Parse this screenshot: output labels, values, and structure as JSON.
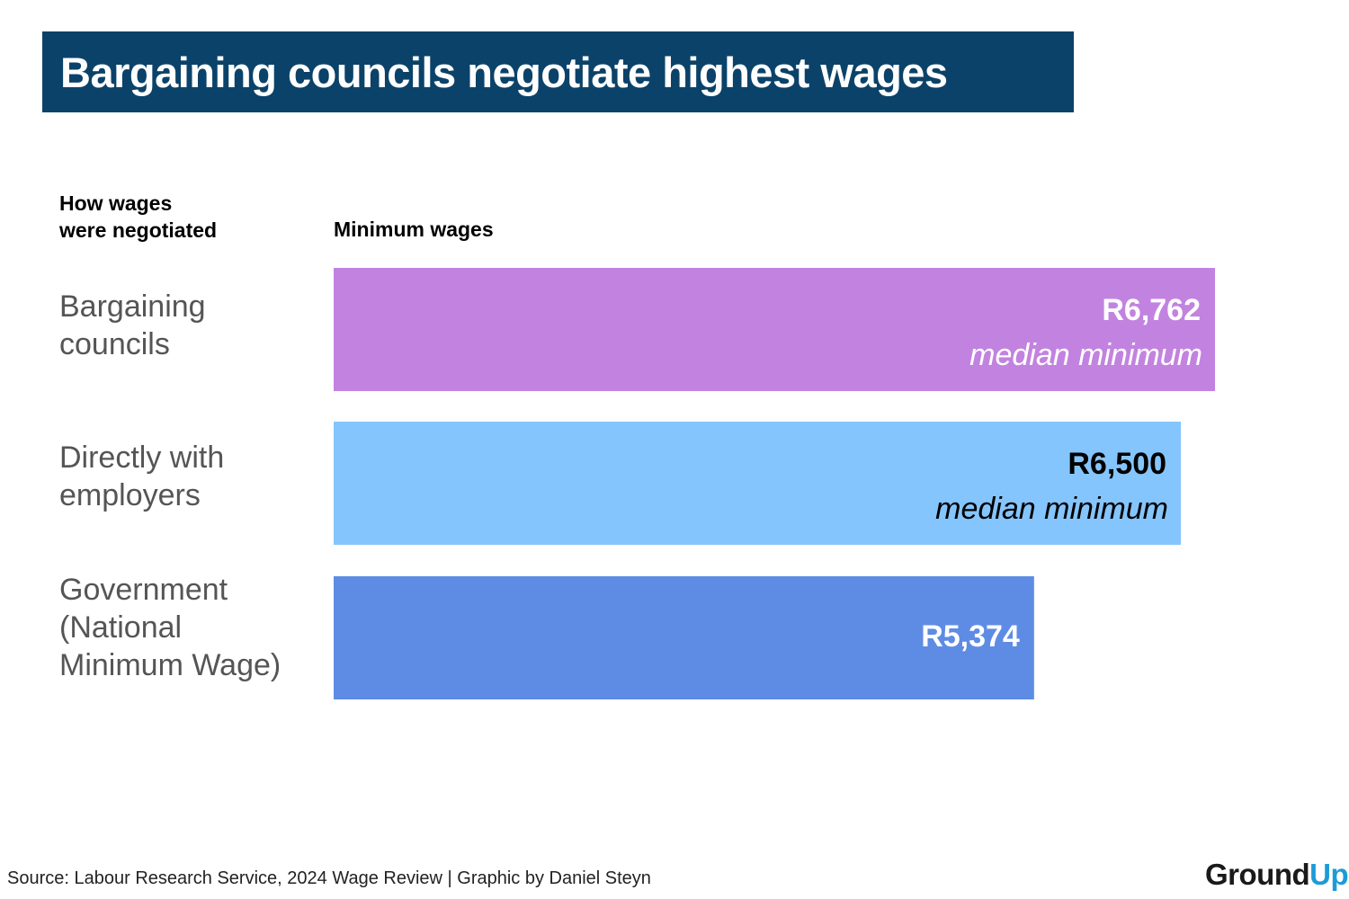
{
  "chart_data": {
    "type": "bar",
    "orientation": "horizontal",
    "title": "Bargaining councils negotiate highest wages",
    "category_header": "How wages\nwere negotiated",
    "value_header": "Minimum wages",
    "categories": [
      "Bargaining\ncouncils",
      "Directly with\nemployers",
      "Government\n(National\nMinimum Wage)"
    ],
    "values": [
      6762,
      6500,
      5374
    ],
    "value_labels": [
      "R6,762",
      "R6,500",
      "R5,374"
    ],
    "value_sublabels": [
      "median minimum",
      "median minimum",
      ""
    ],
    "colors": [
      "#c283e0",
      "#85c5fd",
      "#5e8ce4"
    ],
    "label_colors": [
      "#ffffff",
      "#000000",
      "#ffffff"
    ],
    "xlim": [
      0,
      6900
    ],
    "grid": false,
    "legend": "none"
  },
  "footer": {
    "source": "Source: Labour Research Service, 2024 Wage Review | Graphic by Daniel Steyn",
    "logo_ground": "GroundUp",
    "logo_part1": "Ground",
    "logo_part2": "Up"
  }
}
